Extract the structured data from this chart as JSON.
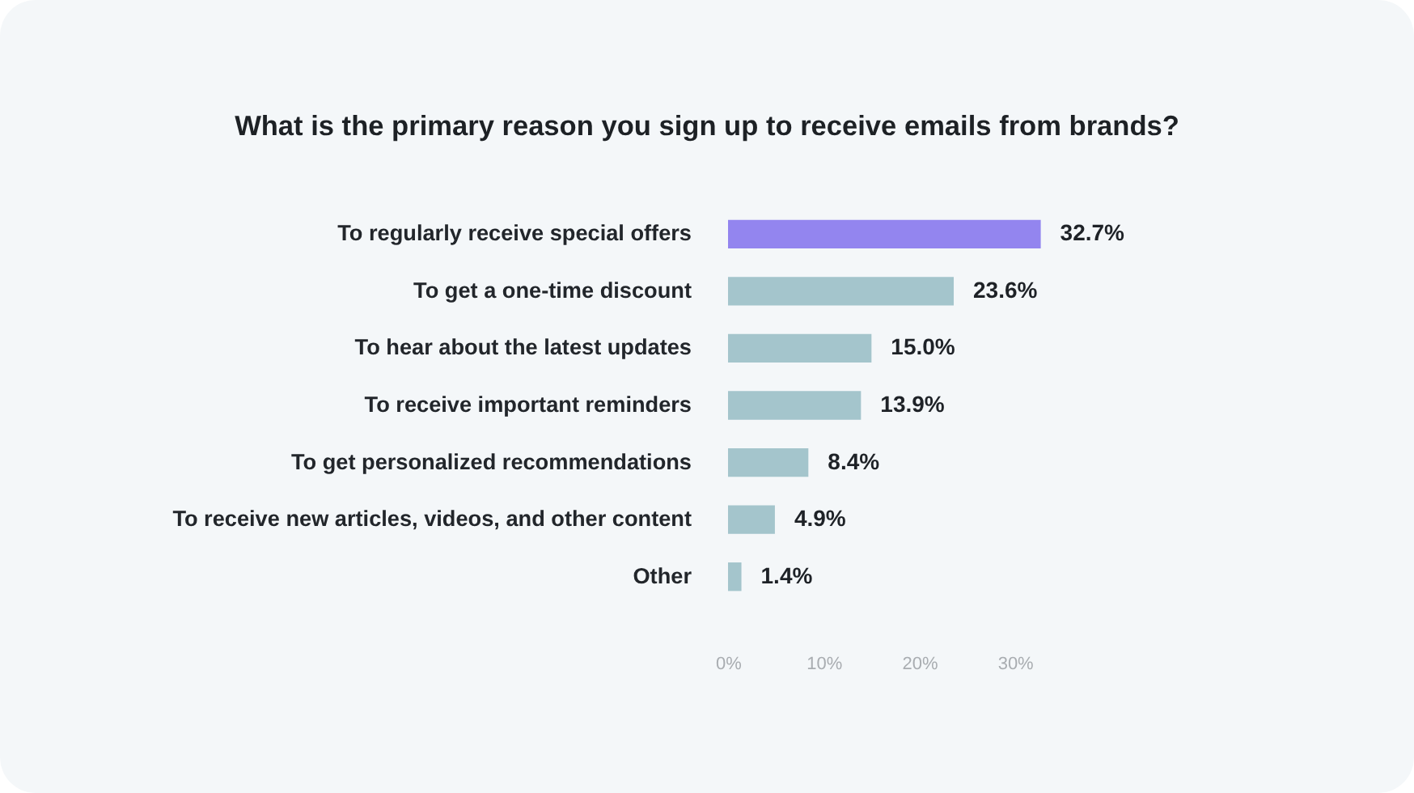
{
  "chart_data": {
    "type": "bar",
    "orientation": "horizontal",
    "title": "What is the primary reason you sign up to receive emails from brands?",
    "categories": [
      "To regularly receive special offers",
      "To get a one-time discount",
      "To hear about the latest updates",
      "To receive important reminders",
      "To get personalized recommendations",
      "To receive new articles, videos, and other content",
      "Other"
    ],
    "values": [
      32.7,
      23.6,
      15.0,
      13.9,
      8.4,
      4.9,
      1.4
    ],
    "colors": [
      "#9385ef",
      "#a4c5cc",
      "#a4c5cc",
      "#a4c5cc",
      "#a4c5cc",
      "#a4c5cc",
      "#a4c5cc"
    ],
    "value_labels": [
      "32.7%",
      "23.6%",
      "15.0%",
      "13.9%",
      "8.4%",
      "4.9%",
      "1.4%"
    ],
    "xlim": [
      0,
      32.7
    ],
    "xticks": [
      {
        "value": 0,
        "label": "0%"
      },
      {
        "value": 10,
        "label": "10%"
      },
      {
        "value": 20,
        "label": "20%"
      },
      {
        "value": 30,
        "label": "30%"
      }
    ],
    "grid": false
  }
}
